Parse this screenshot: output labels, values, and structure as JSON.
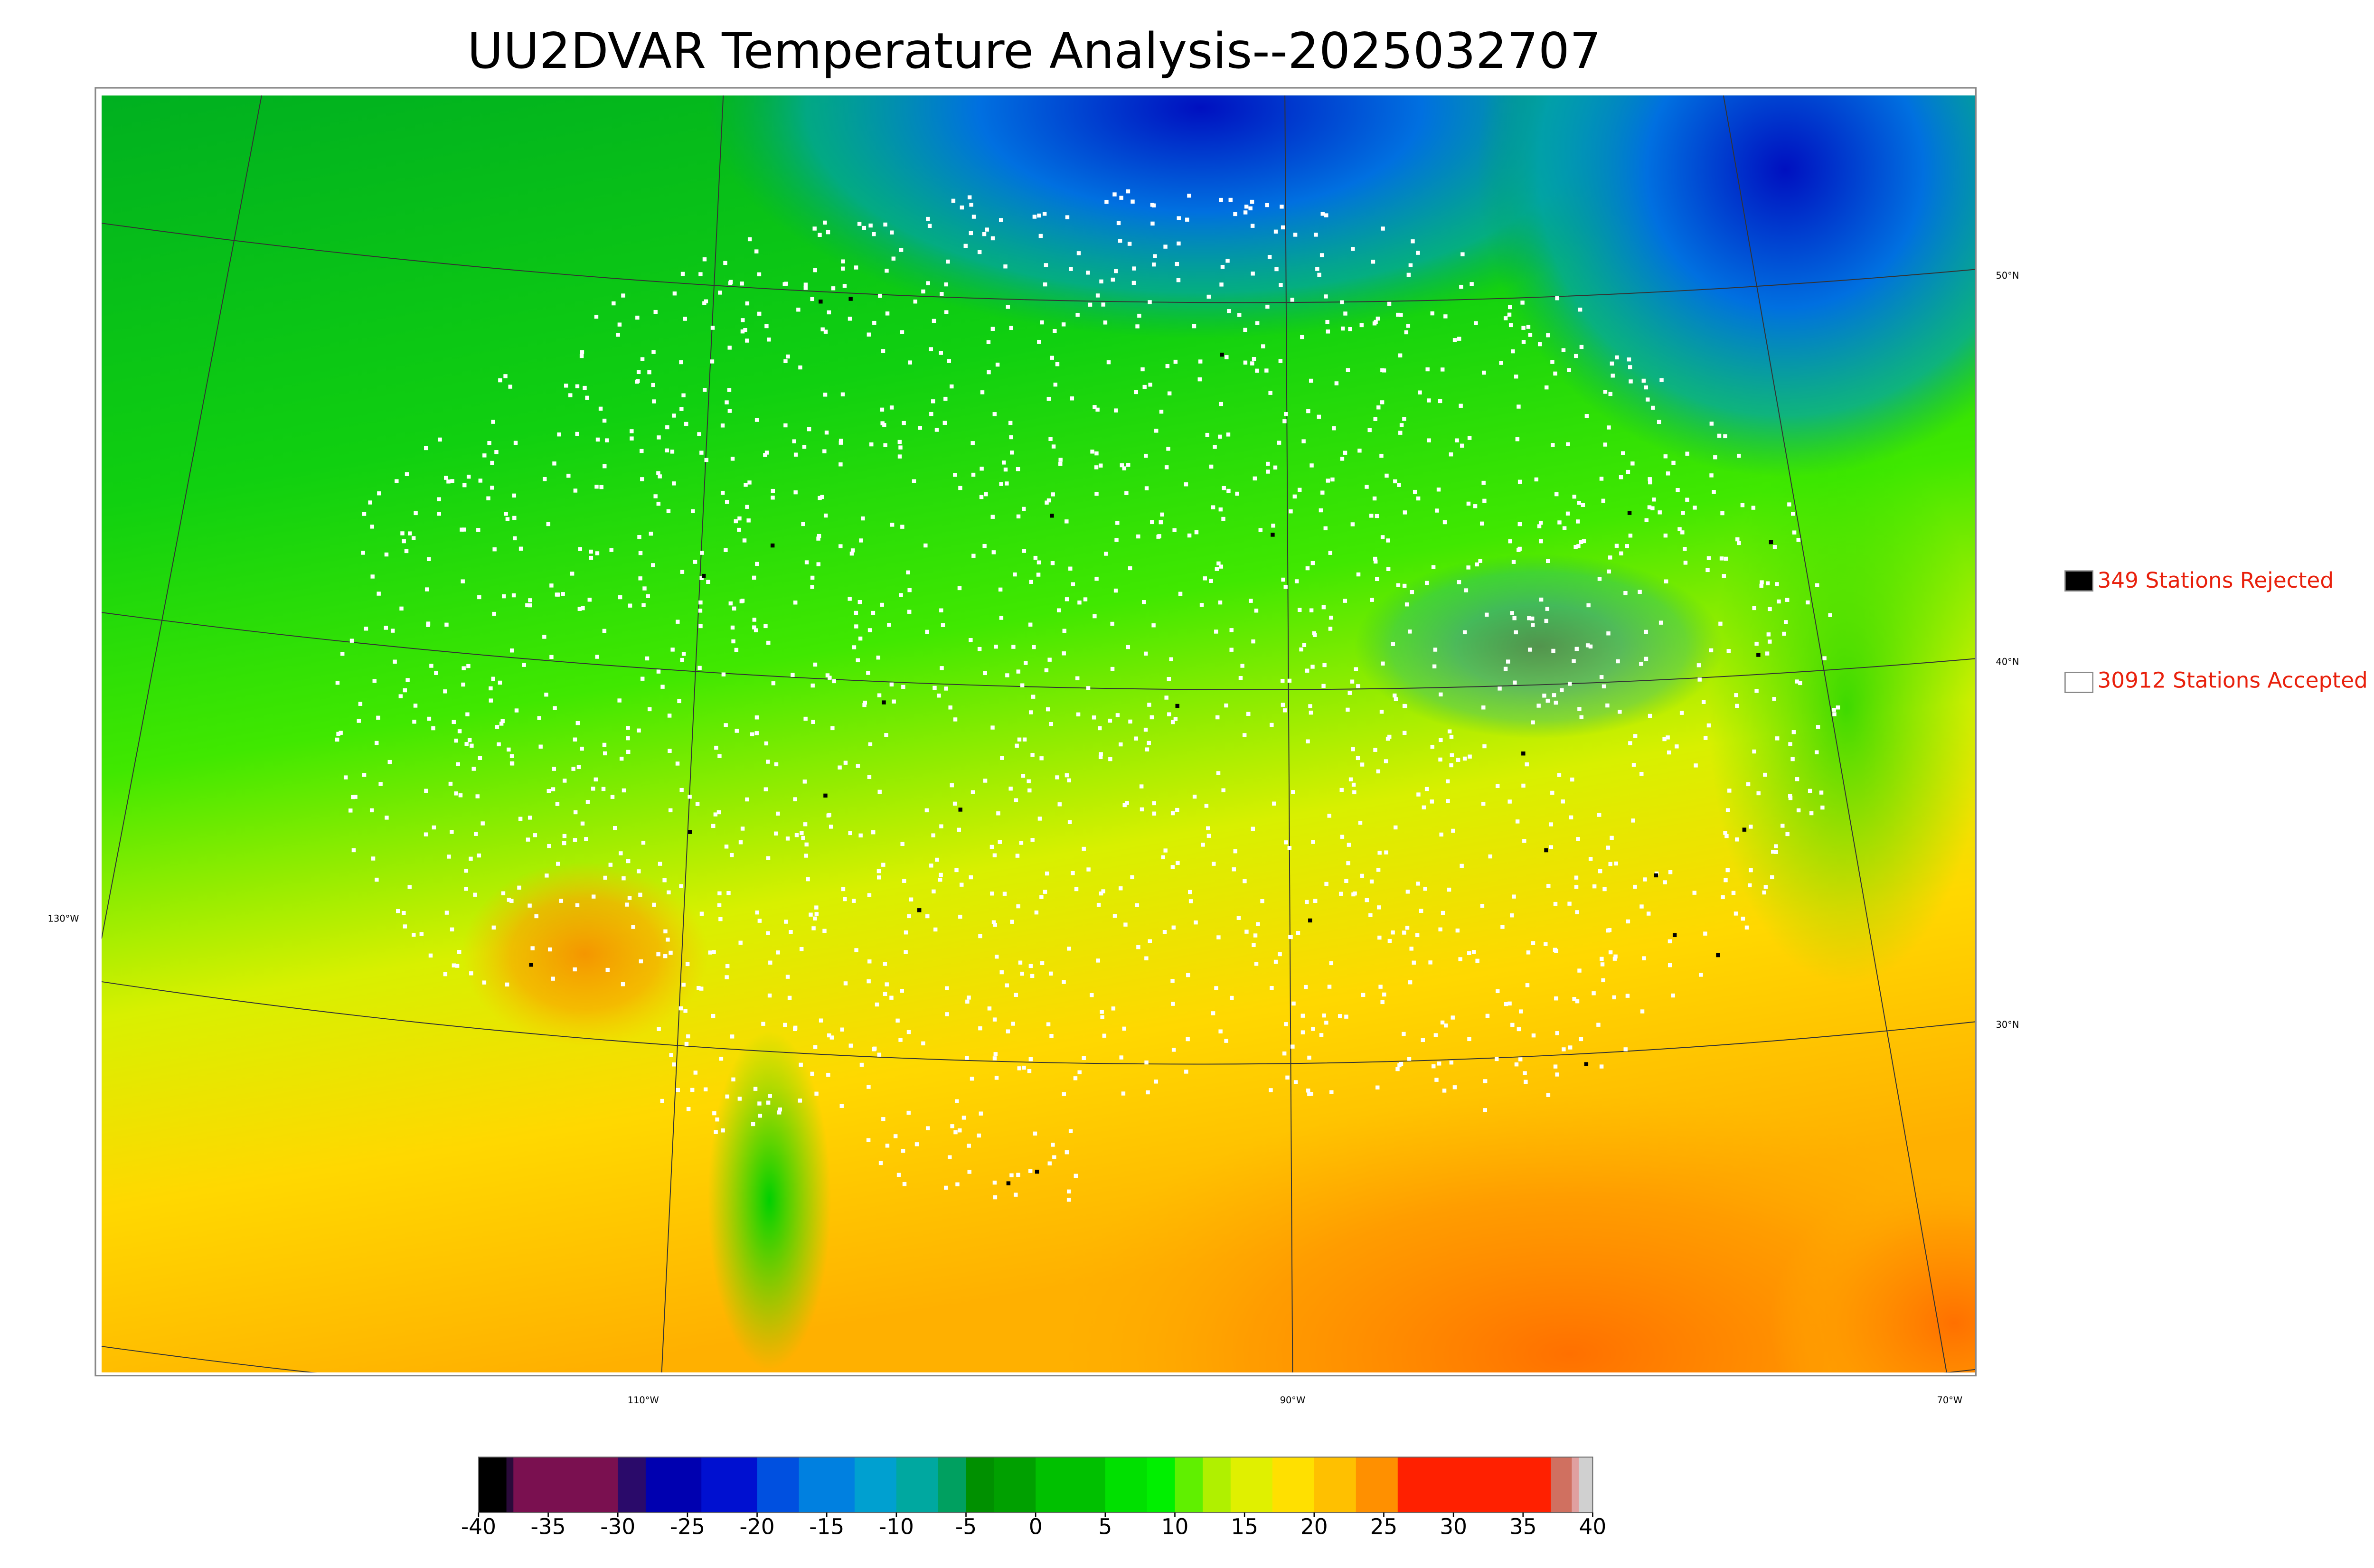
{
  "title": "UU2DVAR Temperature Analysis--2025032707",
  "legend": [
    {
      "label": "349 Stations Rejected",
      "color": "#000000"
    },
    {
      "label": "30912 Stations Accepted",
      "color": "#ffffff"
    }
  ],
  "map": {
    "lat_labels": [
      "50°N",
      "40°N",
      "30°N"
    ],
    "lon_labels": [
      "130°W",
      "110°W",
      "90°W",
      "70°W"
    ]
  },
  "colorbar": {
    "min": -40,
    "max": 40,
    "ticks": [
      -40,
      -35,
      -30,
      -25,
      -20,
      -15,
      -10,
      -5,
      0,
      5,
      10,
      15,
      20,
      25,
      30,
      35,
      40
    ],
    "stops": [
      {
        "value": -40,
        "color": "#000000"
      },
      {
        "value": -38,
        "color": "#2a0a3a"
      },
      {
        "value": -37.5,
        "color": "#7a1050"
      },
      {
        "value": -30,
        "color": "#2a0a6a"
      },
      {
        "value": -28,
        "color": "#0000b0"
      },
      {
        "value": -24,
        "color": "#0010d0"
      },
      {
        "value": -20,
        "color": "#0050e0"
      },
      {
        "value": -17,
        "color": "#0080e0"
      },
      {
        "value": -13,
        "color": "#00a0d0"
      },
      {
        "value": -10,
        "color": "#00a8a0"
      },
      {
        "value": -7,
        "color": "#00a060"
      },
      {
        "value": -5,
        "color": "#009000"
      },
      {
        "value": -3,
        "color": "#00a000"
      },
      {
        "value": 0,
        "color": "#00c000"
      },
      {
        "value": 5,
        "color": "#00e000"
      },
      {
        "value": 8,
        "color": "#00f000"
      },
      {
        "value": 10,
        "color": "#60f000"
      },
      {
        "value": 12,
        "color": "#b0f000"
      },
      {
        "value": 14,
        "color": "#e0f000"
      },
      {
        "value": 17,
        "color": "#ffe000"
      },
      {
        "value": 20,
        "color": "#ffc000"
      },
      {
        "value": 23,
        "color": "#ff9000"
      },
      {
        "value": 26,
        "color": "#ff2000"
      },
      {
        "value": 37,
        "color": "#d07060"
      },
      {
        "value": 38.5,
        "color": "#e0a0a0"
      },
      {
        "value": 39,
        "color": "#d0d0d0"
      }
    ]
  }
}
